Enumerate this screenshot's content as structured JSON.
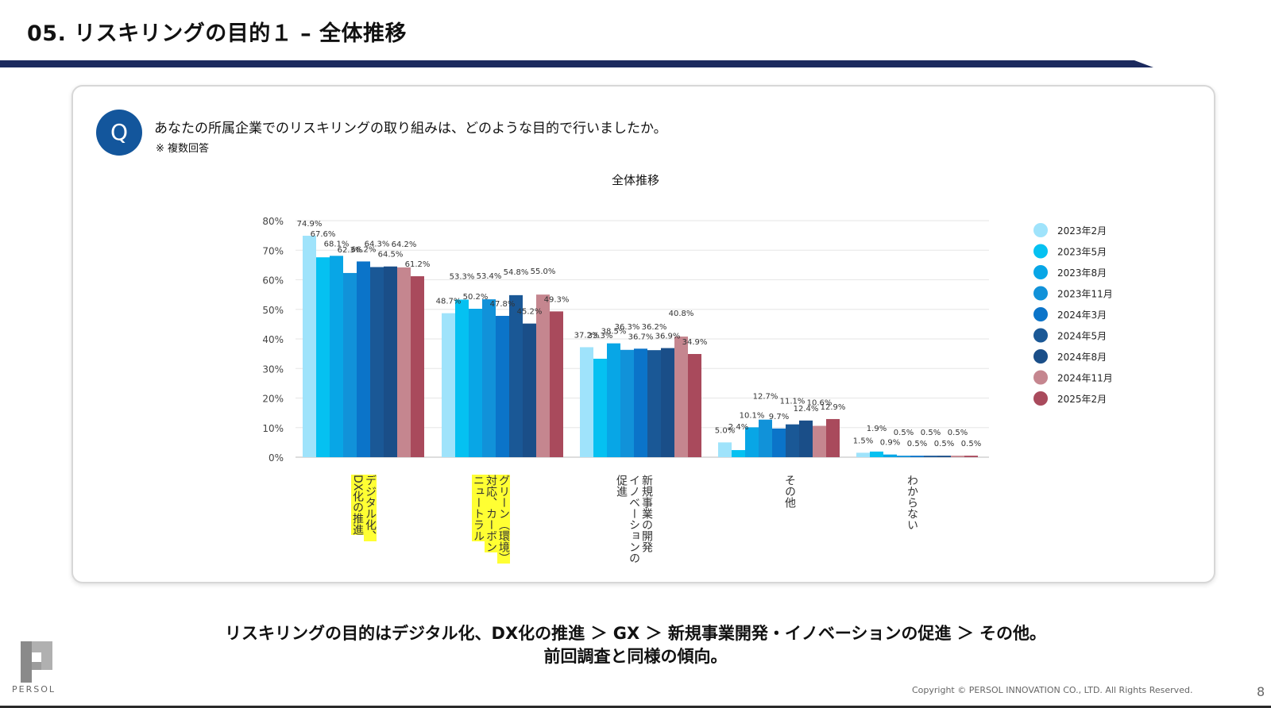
{
  "header": {
    "title": "05. リスキリングの目的１ – 全体推移"
  },
  "question": {
    "badge": "Q",
    "text": "あなたの所属企業でのリスキリングの取り組みは、どのような目的で行いましたか。",
    "note": "※ 複数回答"
  },
  "chart_data": {
    "type": "bar",
    "title": "全体推移",
    "xlabel": "",
    "ylabel": "",
    "ylim": [
      0,
      80
    ],
    "ytick_step": 10,
    "ytick_suffix": "%",
    "grid": true,
    "legend_position": "right",
    "categories": [
      "デジタル化、DX化の推進",
      "グリーン（環境）対応、カーボンニュートラル",
      "新規事業の開発、イノベーションの促進",
      "その他",
      "わからない"
    ],
    "series": [
      {
        "name": "2023年2月",
        "color": "#9fe3fb",
        "values": [
          74.9,
          48.7,
          37.2,
          5.0,
          1.5
        ]
      },
      {
        "name": "2023年5月",
        "color": "#05c1f1",
        "values": [
          67.6,
          53.3,
          33.3,
          2.4,
          1.9
        ]
      },
      {
        "name": "2023年8月",
        "color": "#08a6e6",
        "values": [
          68.1,
          50.2,
          38.5,
          10.1,
          0.9
        ]
      },
      {
        "name": "2023年11月",
        "color": "#1192d9",
        "values": [
          62.3,
          53.4,
          36.3,
          12.7,
          0.5
        ]
      },
      {
        "name": "2024年3月",
        "color": "#0b74c9",
        "values": [
          66.2,
          47.8,
          36.7,
          9.7,
          0.5
        ]
      },
      {
        "name": "2024年5月",
        "color": "#1a5896",
        "values": [
          64.3,
          54.8,
          36.2,
          11.1,
          0.5
        ]
      },
      {
        "name": "2024年8月",
        "color": "#1a4e88",
        "values": [
          64.5,
          45.2,
          36.9,
          12.4,
          0.5
        ]
      },
      {
        "name": "2024年11月",
        "color": "#c5868f",
        "values": [
          64.2,
          55.0,
          40.8,
          10.6,
          0.5
        ]
      },
      {
        "name": "2025年2月",
        "color": "#a94a5c",
        "values": [
          61.2,
          49.3,
          34.9,
          12.9,
          0.5
        ]
      }
    ]
  },
  "category_labels": {
    "c0_part1": "デジタル化、",
    "c0_part2": "DX化の推進",
    "c1_part1": "グリーン（環境）",
    "c1_part2": "対応、カーボン",
    "c1_part3": "ニュートラル",
    "c2_part1": "新規事業の開発",
    "c2_part2": "イノベーションの",
    "c2_part3": "促進",
    "c3_part1": "その他",
    "c4_part1": "わからない"
  },
  "summary": {
    "line1": "リスキリングの目的はデジタル化、DX化の推進 ＞ GX ＞ 新規事業開発・イノベーションの促進 ＞ その他。",
    "line2": "前回調査と同様の傾向。"
  },
  "footer": {
    "logo_text": "PERSOL",
    "copyright": "Copyright © PERSOL INNOVATION CO., LTD. All Rights Reserved.",
    "page_number": "8"
  }
}
